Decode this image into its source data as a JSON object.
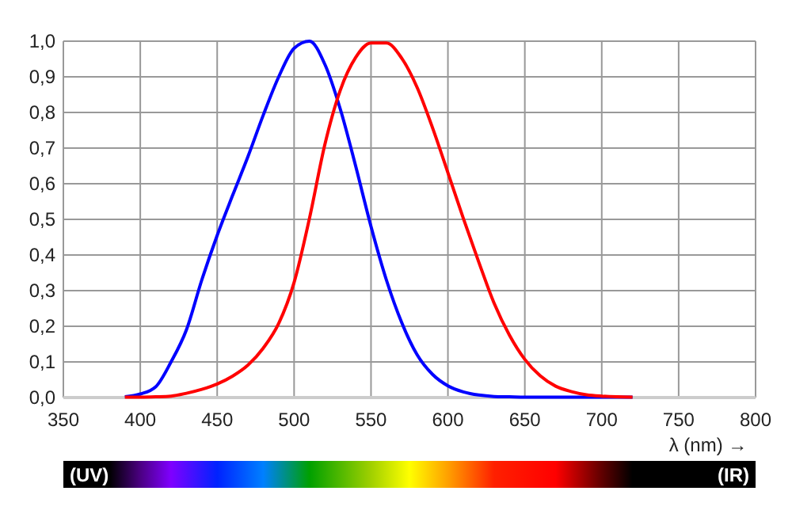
{
  "chart_data": {
    "type": "line",
    "xlabel": "λ (nm) →",
    "xlim": [
      350,
      800
    ],
    "xticks": [
      350,
      400,
      450,
      500,
      550,
      600,
      650,
      700,
      750,
      800
    ],
    "ylim": [
      0,
      1
    ],
    "yticks": [
      {
        "value": 0,
        "label": "0,0"
      },
      {
        "value": 0.1,
        "label": "0,1"
      },
      {
        "value": 0.2,
        "label": "0,2"
      },
      {
        "value": 0.3,
        "label": "0,3"
      },
      {
        "value": 0.4,
        "label": "0,4"
      },
      {
        "value": 0.5,
        "label": "0,5"
      },
      {
        "value": 0.6,
        "label": "0,6"
      },
      {
        "value": 0.7,
        "label": "0,7"
      },
      {
        "value": 0.8,
        "label": "0,8"
      },
      {
        "value": 0.9,
        "label": "0,9"
      },
      {
        "value": 1,
        "label": "1,0"
      }
    ],
    "grid": true,
    "marker": "none",
    "line_style": "solid",
    "x": [
      390,
      400,
      410,
      420,
      430,
      440,
      450,
      460,
      470,
      480,
      490,
      500,
      510,
      520,
      530,
      540,
      550,
      560,
      570,
      580,
      590,
      600,
      610,
      620,
      630,
      640,
      650,
      660,
      670,
      680,
      690,
      700,
      710,
      720
    ],
    "series": [
      {
        "color": "#0000ff",
        "values": [
          0.002,
          0.01,
          0.03,
          0.1,
          0.19,
          0.33,
          0.455,
          0.567,
          0.676,
          0.793,
          0.9,
          0.98,
          1,
          0.935,
          0.81,
          0.65,
          0.48,
          0.33,
          0.21,
          0.12,
          0.065,
          0.033,
          0.016,
          0.007,
          0.003,
          0.002,
          0.001,
          0.001,
          0.001,
          0.001,
          0.001,
          0.001,
          0.001,
          0.001
        ]
      },
      {
        "color": "#ff0000",
        "values": [
          0.001,
          0.001,
          0.002,
          0.004,
          0.012,
          0.023,
          0.038,
          0.06,
          0.091,
          0.139,
          0.208,
          0.323,
          0.503,
          0.71,
          0.862,
          0.954,
          0.995,
          0.995,
          0.952,
          0.87,
          0.757,
          0.631,
          0.503,
          0.381,
          0.265,
          0.175,
          0.107,
          0.061,
          0.032,
          0.017,
          0.008,
          0.004,
          0.002,
          0.001
        ]
      }
    ],
    "annotations": [
      "(UV)",
      "(IR)"
    ]
  }
}
